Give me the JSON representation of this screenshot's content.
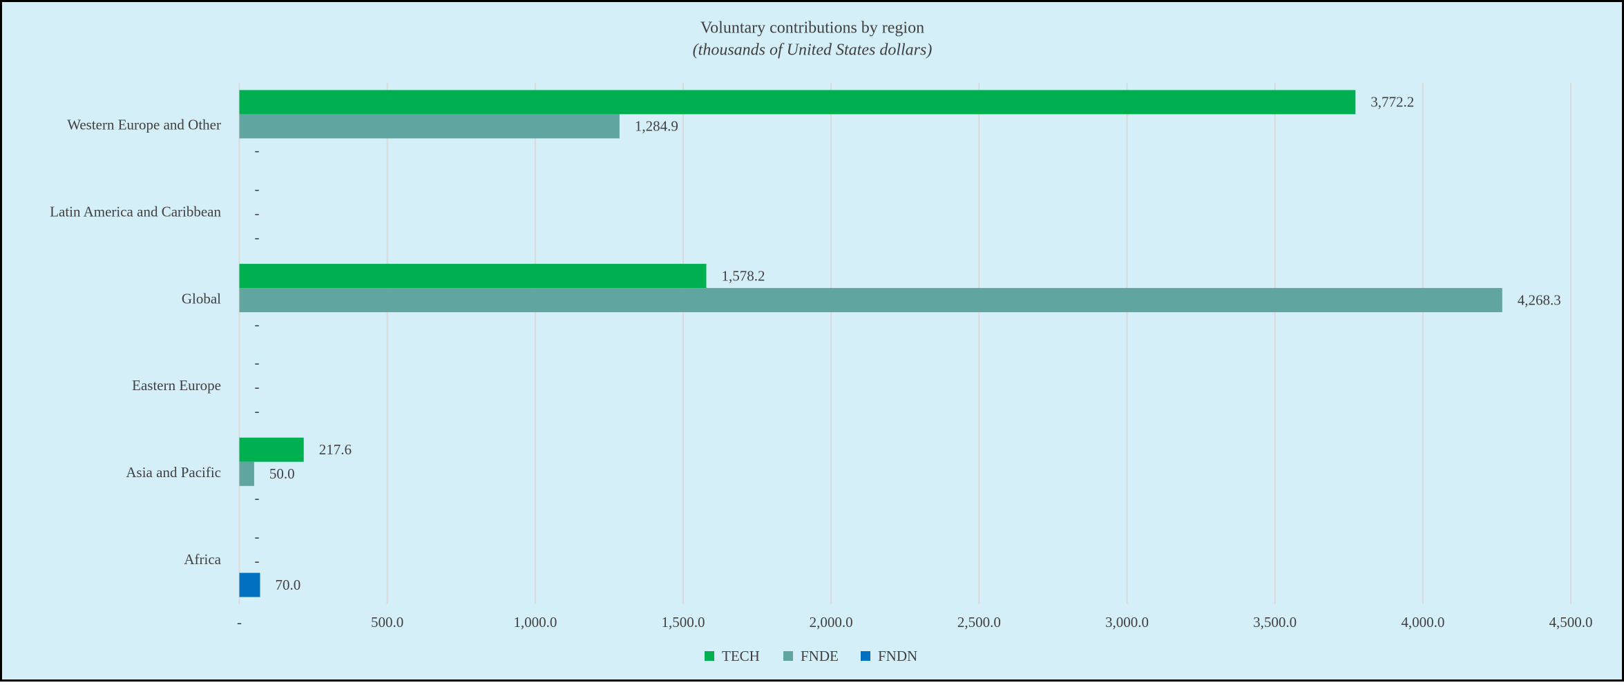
{
  "chart_data": {
    "type": "bar",
    "orientation": "horizontal",
    "title": "Voluntary contributions by region",
    "subtitle": "(thousands of United States dollars)",
    "categories": [
      "Western Europe and Other",
      "Latin America and Caribbean",
      "Global",
      "Eastern Europe",
      "Asia and Pacific",
      "Africa"
    ],
    "series": [
      {
        "name": "TECH",
        "color": "#00b050",
        "values": [
          3772.2,
          0,
          1578.2,
          0,
          217.6,
          0
        ],
        "value_labels": [
          "3,772.2",
          "-",
          "1,578.2",
          "-",
          "217.6",
          "-"
        ]
      },
      {
        "name": "FNDE",
        "color": "#61a5a0",
        "values": [
          1284.9,
          0,
          4268.3,
          0,
          50.0,
          0
        ],
        "value_labels": [
          "1,284.9",
          "-",
          "4,268.3",
          "-",
          "50.0",
          "-"
        ]
      },
      {
        "name": "FNDN",
        "color": "#0070c0",
        "values": [
          0,
          0,
          0,
          0,
          0,
          70.0
        ],
        "value_labels": [
          "-",
          "-",
          "-",
          "-",
          "-",
          "70.0"
        ]
      }
    ],
    "xlim": [
      0,
      4500
    ],
    "xticks": [
      {
        "value": 0,
        "label": "-"
      },
      {
        "value": 500,
        "label": "500.0"
      },
      {
        "value": 1000,
        "label": "1,000.0"
      },
      {
        "value": 1500,
        "label": "1,500.0"
      },
      {
        "value": 2000,
        "label": "2,000.0"
      },
      {
        "value": 2500,
        "label": "2,500.0"
      },
      {
        "value": 3000,
        "label": "3,000.0"
      },
      {
        "value": 3500,
        "label": "3,500.0"
      },
      {
        "value": 4000,
        "label": "4,000.0"
      },
      {
        "value": 4500,
        "label": "4,500.0"
      }
    ],
    "grid": true,
    "legend": "bottom"
  }
}
